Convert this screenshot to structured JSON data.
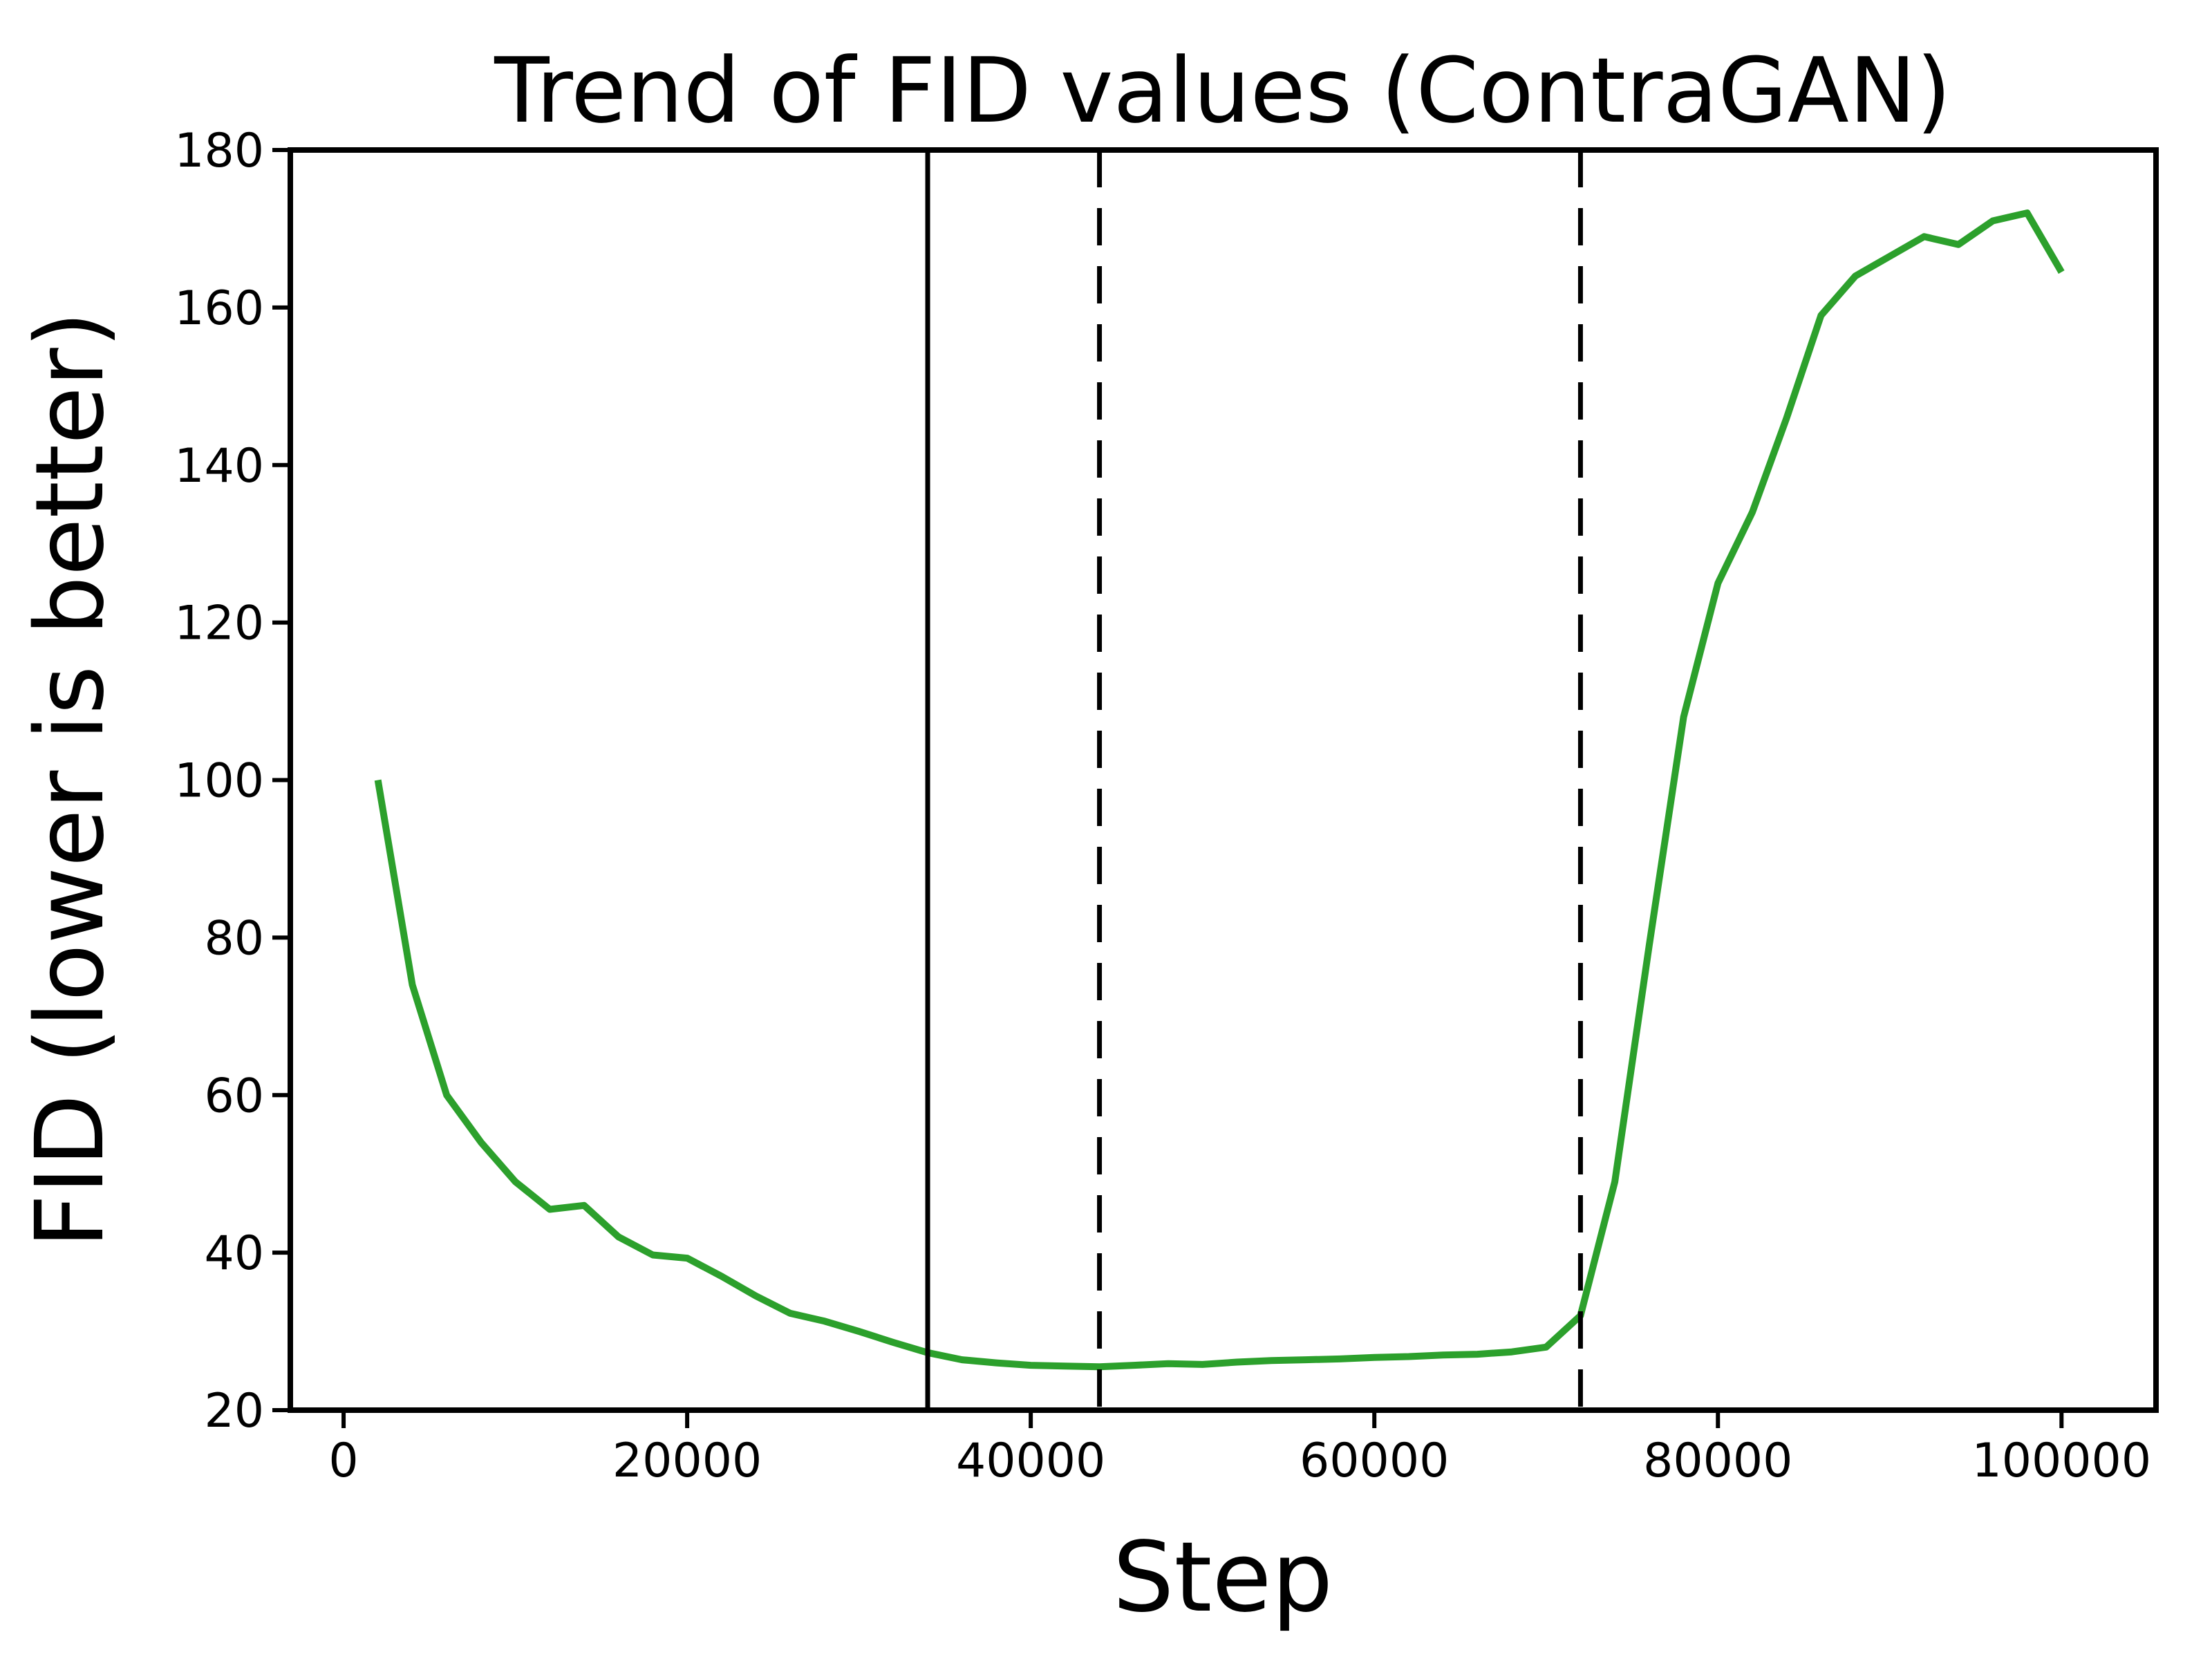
{
  "title": "Trend of FID values (ContraGAN)",
  "colors": {
    "line": "#2ca02c",
    "axis": "#000000",
    "vline": "#000000",
    "background": "#ffffff"
  },
  "chart_data": {
    "type": "line",
    "title": "Trend of FID values (ContraGAN)",
    "xlabel": "Step",
    "ylabel": "FID (lower is better)",
    "xlim": [
      -3100,
      105500
    ],
    "ylim": [
      20,
      180
    ],
    "x_ticks": [
      0,
      20000,
      40000,
      60000,
      80000,
      100000
    ],
    "x_tick_labels": [
      "0",
      "20000",
      "40000",
      "60000",
      "80000",
      "100000"
    ],
    "y_ticks": [
      20,
      40,
      60,
      80,
      100,
      120,
      140,
      160,
      180
    ],
    "y_tick_labels": [
      "20",
      "40",
      "60",
      "80",
      "100",
      "120",
      "140",
      "160",
      "180"
    ],
    "grid": false,
    "legend": null,
    "series": [
      {
        "name": "FID",
        "color": "#2ca02c",
        "x": [
          2000,
          4000,
          6000,
          8000,
          10000,
          12000,
          14000,
          16000,
          18000,
          20000,
          22000,
          24000,
          26000,
          28000,
          30000,
          32000,
          34000,
          36000,
          38000,
          40000,
          42000,
          44000,
          46000,
          48000,
          50000,
          52000,
          54000,
          56000,
          58000,
          60000,
          62000,
          64000,
          66000,
          68000,
          70000,
          72000,
          74000,
          76000,
          78000,
          80000,
          82000,
          84000,
          86000,
          88000,
          90000,
          92000,
          94000,
          96000,
          98000,
          100000
        ],
        "y": [
          100,
          74,
          60,
          54,
          49,
          45.5,
          46,
          42,
          39.7,
          39.3,
          37,
          34.5,
          32.3,
          31.3,
          30,
          28.6,
          27.3,
          26.4,
          26,
          25.7,
          25.6,
          25.5,
          25.7,
          25.9,
          25.8,
          26.1,
          26.3,
          26.4,
          26.5,
          26.7,
          26.8,
          27,
          27.1,
          27.4,
          28,
          32,
          49,
          79,
          108,
          125,
          134,
          146,
          159,
          164,
          166.5,
          169,
          168,
          171,
          172,
          164.5
        ]
      }
    ],
    "vlines": [
      {
        "x": 34000,
        "style": "solid",
        "color": "#000000"
      },
      {
        "x": 44000,
        "style": "dashed",
        "color": "#000000"
      },
      {
        "x": 72000,
        "style": "dashed",
        "color": "#000000"
      }
    ]
  }
}
